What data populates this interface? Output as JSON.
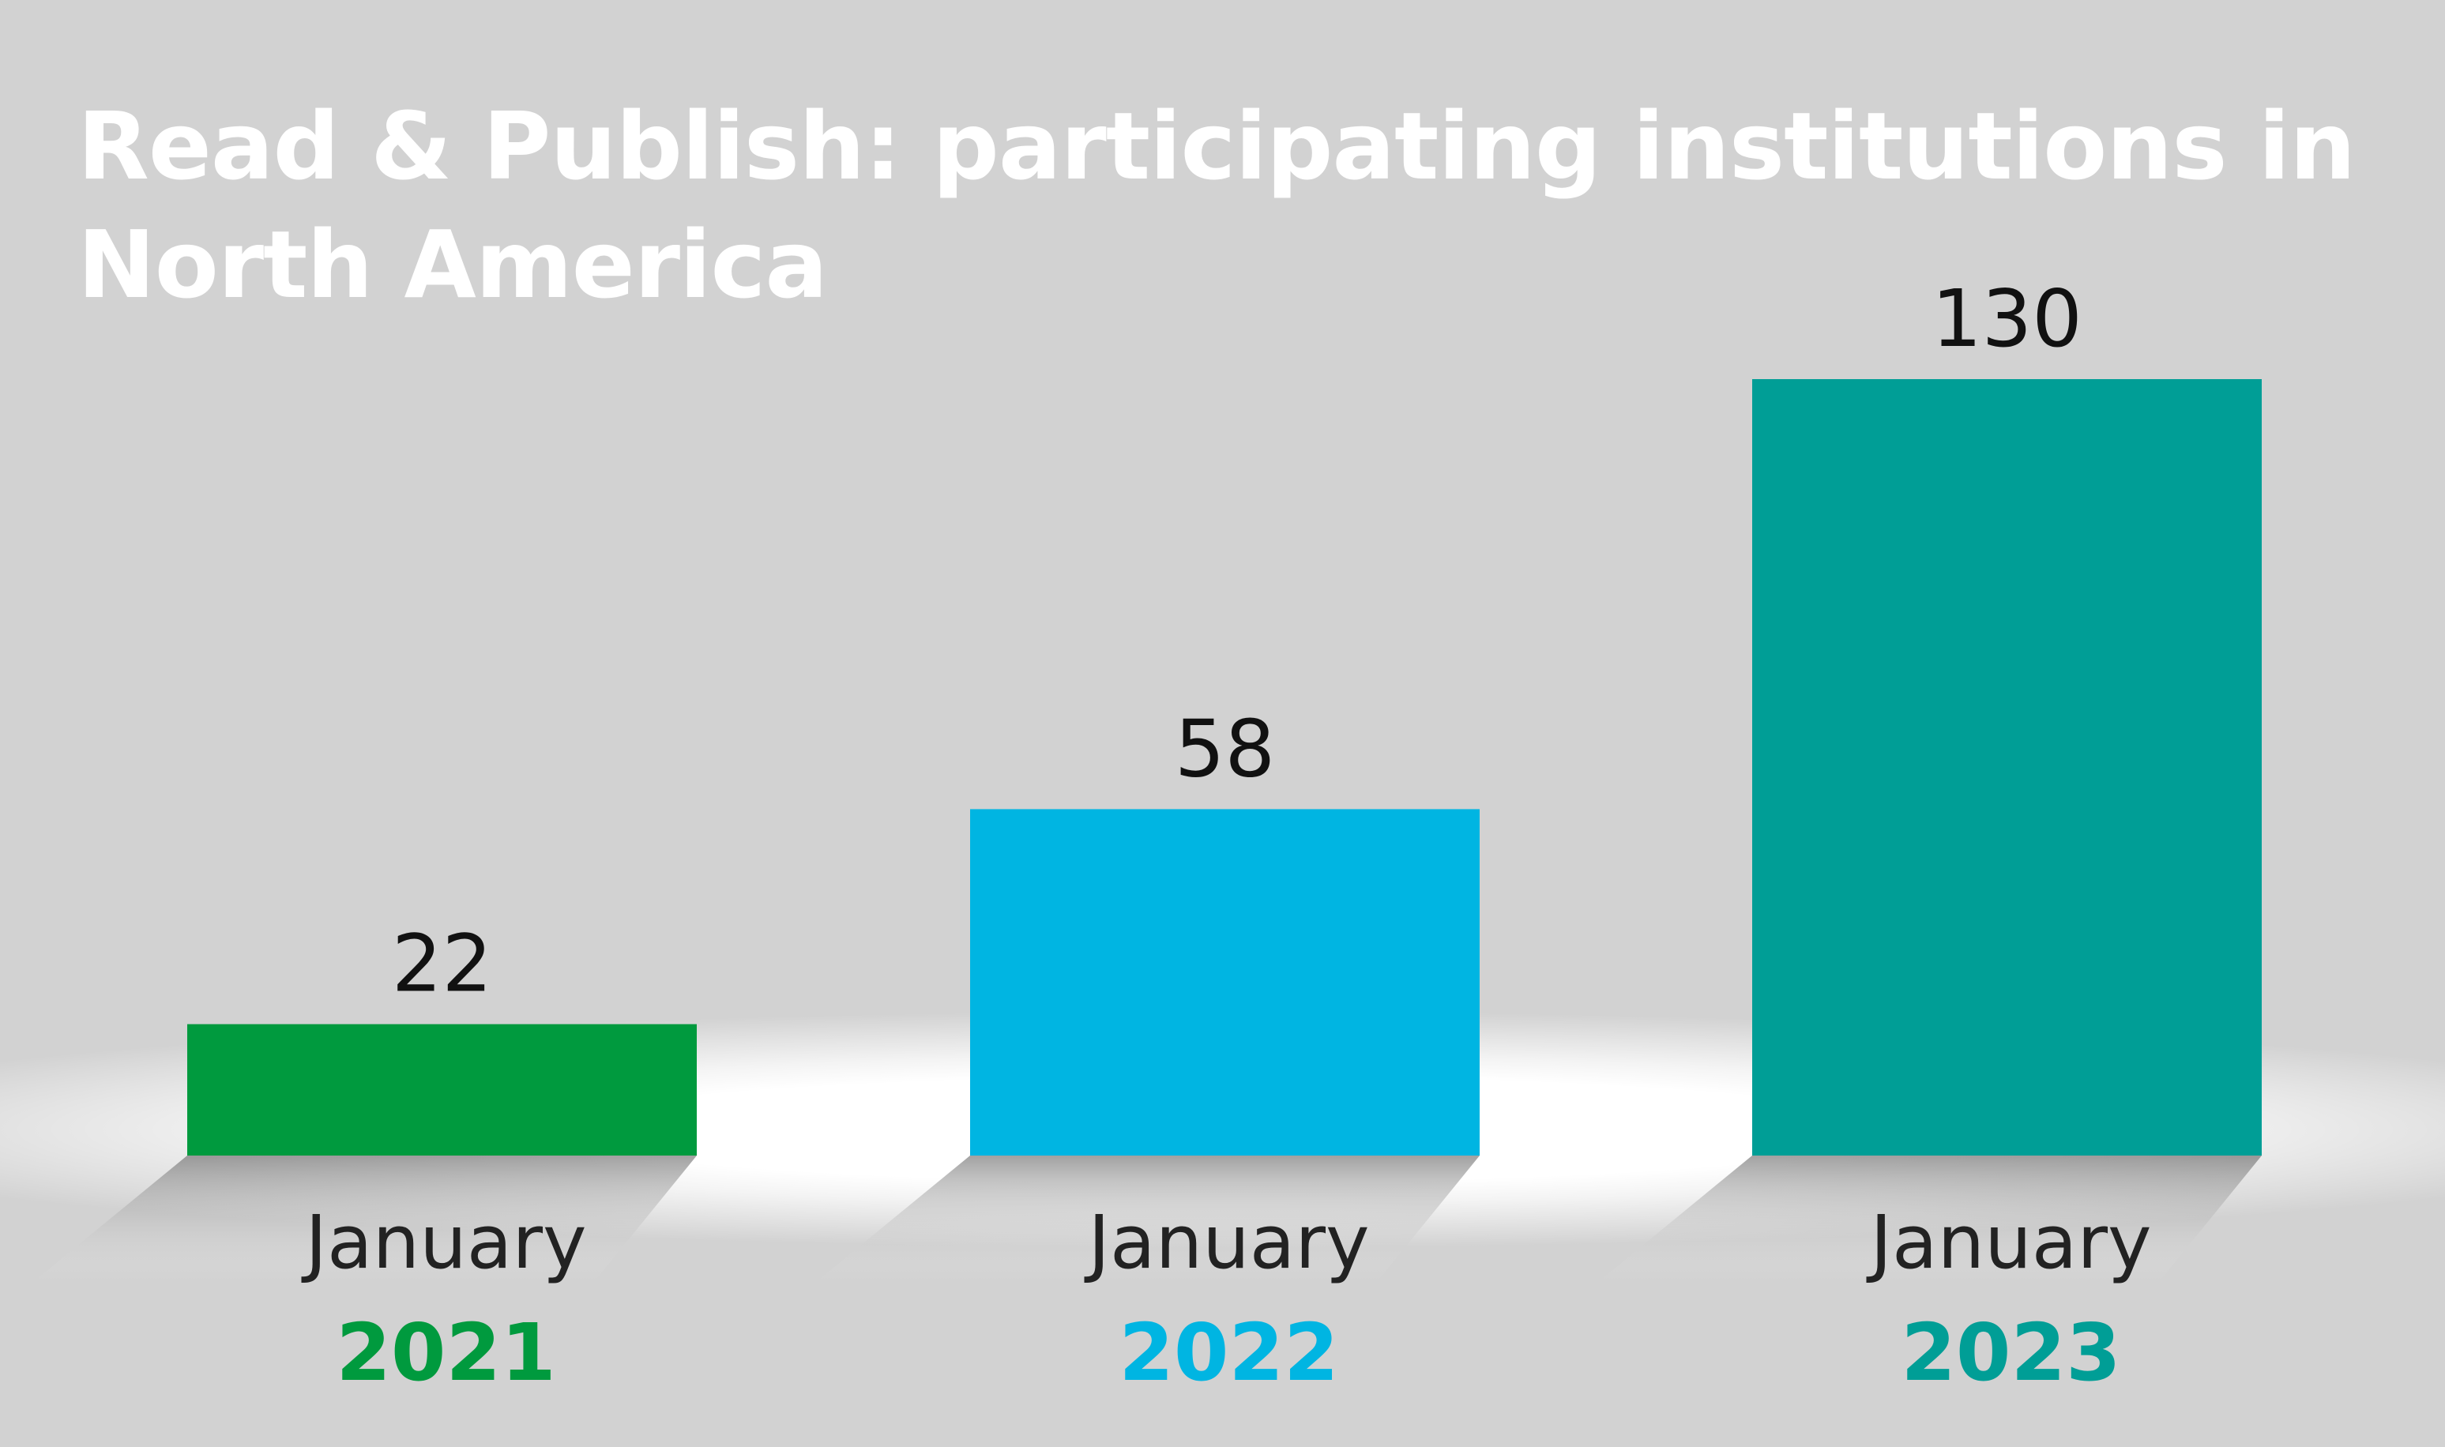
{
  "title": "Read & Publish: participating institutions in North America",
  "chart_data": {
    "type": "bar",
    "title": "Read & Publish: participating institutions in North America",
    "categories": [
      {
        "month": "January",
        "year": "2021"
      },
      {
        "month": "January",
        "year": "2022"
      },
      {
        "month": "January",
        "year": "2023"
      }
    ],
    "values": [
      22,
      58,
      130
    ],
    "colors": [
      "#009a3e",
      "#00b5e2",
      "#009e96"
    ],
    "xlabel": "",
    "ylabel": "",
    "grid": false,
    "legend": "none"
  }
}
